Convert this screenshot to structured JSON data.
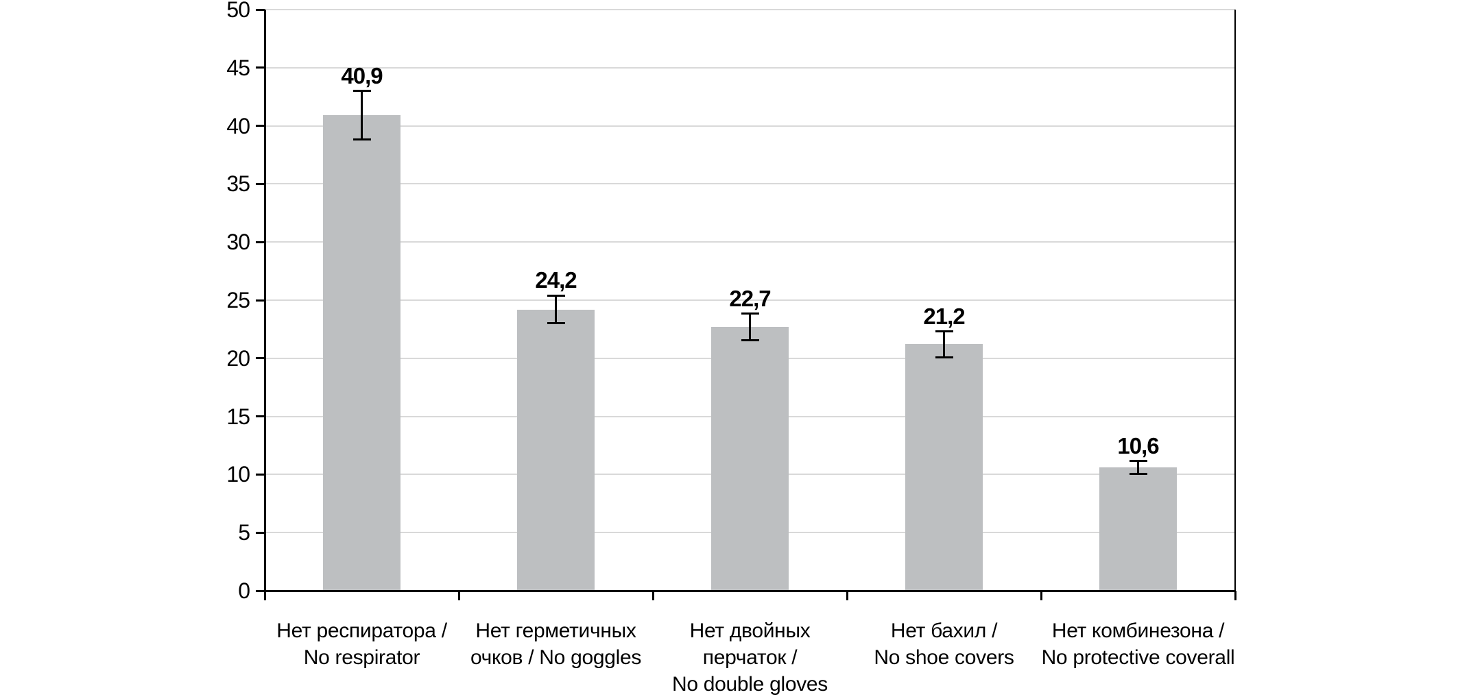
{
  "chart_data": {
    "type": "bar",
    "title": "",
    "xlabel": "",
    "ylabel": "",
    "categories": [
      [
        "Нет респиратора /",
        "No respirator"
      ],
      [
        "Нет герметичных",
        "очков / No goggles"
      ],
      [
        "Нет двойных",
        "перчаток /",
        "No double gloves"
      ],
      [
        "Нет бахил /",
        "No shoe covers"
      ],
      [
        "Нет комбинезона /",
        "No protective coverall"
      ]
    ],
    "values": [
      40.9,
      24.2,
      22.7,
      21.2,
      10.6
    ],
    "value_labels": [
      "40,9",
      "24,2",
      "22,7",
      "21,2",
      "10,6"
    ],
    "errors": [
      2.1,
      1.2,
      1.15,
      1.1,
      0.55
    ],
    "ylim": [
      0,
      50
    ],
    "yticks": [
      0,
      5,
      10,
      15,
      20,
      25,
      30,
      35,
      40,
      45,
      50
    ],
    "grid": true,
    "legend": "none",
    "colors": {
      "bar": "#bdbfc1",
      "gridline": "#d9d9d9",
      "axis": "#000000",
      "error_bar": "#000000",
      "text": "#000000",
      "background": "#ffffff"
    }
  }
}
